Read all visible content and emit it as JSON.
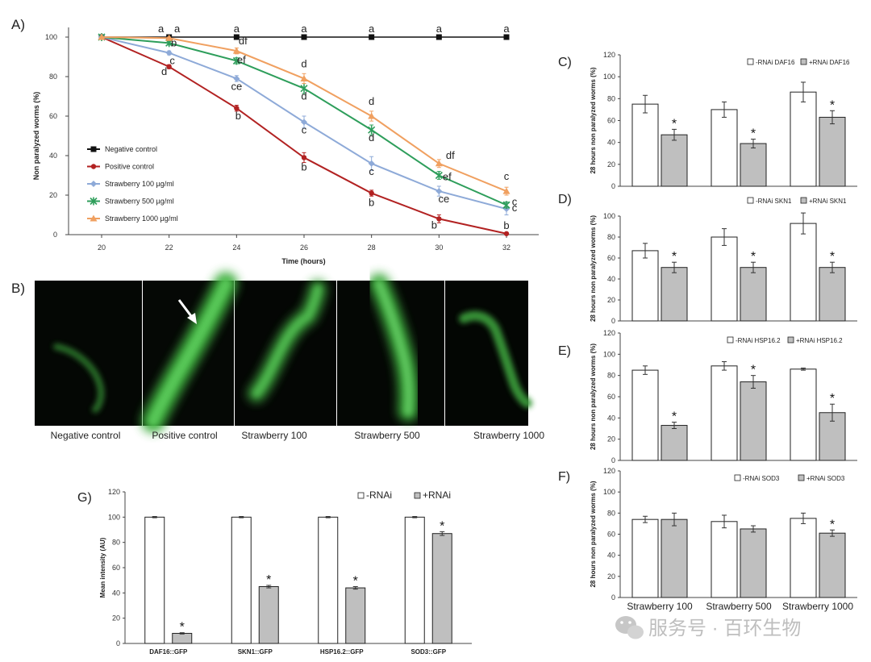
{
  "panel_letters": {
    "A": "A)",
    "B": "B)",
    "C": "C)",
    "D": "D)",
    "E": "E)",
    "F": "F)",
    "G": "G)"
  },
  "watermark": {
    "text": "服务号 · 百环生物",
    "icon": "wechat-icon"
  },
  "colors": {
    "negative": "#111111",
    "positive": "#b22222",
    "s100": "#8eaad8",
    "s500": "#2e9e5b",
    "s1000": "#f0a060",
    "bar_white": "#ffffff",
    "bar_gray": "#bfbfbf",
    "stroke": "#222222"
  },
  "panel_b": {
    "captions": [
      "Negative control",
      "Positive control",
      "Strawberry 100",
      "Strawberry 500",
      "Strawberry 1000"
    ],
    "arrow_icon": "arrow-icon"
  },
  "chart_data": [
    {
      "panel": "A",
      "type": "line",
      "xlabel": "Time (hours)",
      "ylabel": "Non paralyzed worms (%)",
      "x": [
        20,
        22,
        24,
        26,
        28,
        30,
        32
      ],
      "xlim": [
        20,
        32
      ],
      "ylim": [
        0,
        100
      ],
      "yticks": [
        0,
        20,
        40,
        60,
        80,
        100
      ],
      "legend_position": "center-left",
      "series": [
        {
          "name": "Negative control",
          "key": "negative",
          "marker": "square",
          "values": [
            100,
            100,
            100,
            100,
            100,
            100,
            100
          ],
          "labels": [
            "",
            "a",
            "a",
            "a",
            "a",
            "a",
            "a"
          ]
        },
        {
          "name": "Positive control",
          "key": "positive",
          "marker": "circle",
          "values": [
            100,
            85,
            64,
            39,
            21,
            8,
            0.5
          ],
          "errors": [
            0,
            1,
            1.5,
            2.5,
            1.5,
            2,
            0.5
          ],
          "labels": [
            "",
            "d",
            "b",
            "b",
            "b",
            "b",
            "b"
          ]
        },
        {
          "name": "Strawberry 100 µg/ml",
          "key": "s100",
          "marker": "diamond",
          "values": [
            100,
            92,
            79,
            57,
            36,
            22,
            13
          ],
          "errors": [
            0,
            1,
            1.5,
            3,
            3.5,
            2.5,
            3
          ],
          "labels": [
            "",
            "c",
            "ce",
            "c",
            "c",
            "ce",
            "c"
          ]
        },
        {
          "name": "Strawberry 500 µg/ml",
          "key": "s500",
          "marker": "star",
          "values": [
            100,
            97,
            88,
            74,
            53,
            30,
            15
          ],
          "errors": [
            0,
            1,
            1.5,
            2.5,
            2.5,
            2,
            1.5
          ],
          "labels": [
            "",
            "b",
            "ef",
            "d",
            "d",
            "ef",
            "c"
          ]
        },
        {
          "name": "Strawberry 1000 µg/ml",
          "key": "s1000",
          "marker": "triangle",
          "values": [
            100,
            99.5,
            93,
            79,
            60,
            36,
            22
          ],
          "errors": [
            0,
            0.5,
            1.5,
            2.5,
            2.5,
            2,
            2
          ],
          "labels": [
            "",
            "a",
            "df",
            "d",
            "d",
            "df",
            "c"
          ]
        }
      ]
    },
    {
      "panel": "C",
      "type": "bar",
      "ylabel": "28 hours non paralyzed worms (%)",
      "ylim": [
        0,
        120
      ],
      "yticks": [
        0,
        20,
        40,
        60,
        80,
        100,
        120
      ],
      "categories": [
        "Strawberry 100",
        "Strawberry 500",
        "Strawberry 1000"
      ],
      "show_categories": false,
      "series": [
        {
          "name": "-RNAi DAF16",
          "key": "bar_white",
          "values": [
            75,
            70,
            86
          ],
          "errors": [
            8,
            7,
            9
          ],
          "stars": [
            false,
            false,
            false
          ]
        },
        {
          "name": "+RNAi DAF16",
          "key": "bar_gray",
          "values": [
            47,
            39,
            63
          ],
          "errors": [
            5,
            4,
            6
          ],
          "stars": [
            true,
            true,
            true
          ]
        }
      ]
    },
    {
      "panel": "D",
      "type": "bar",
      "ylabel": "28 hours non paralyzed worms (%)",
      "ylim": [
        0,
        100
      ],
      "yticks": [
        0,
        20,
        40,
        60,
        80,
        100
      ],
      "categories": [
        "Strawberry 100",
        "Strawberry 500",
        "Strawberry 1000"
      ],
      "show_categories": false,
      "series": [
        {
          "name": "-RNAi SKN1",
          "key": "bar_white",
          "values": [
            67,
            80,
            93
          ],
          "errors": [
            7,
            8,
            10
          ],
          "stars": [
            false,
            false,
            false
          ]
        },
        {
          "name": "+RNAi SKN1",
          "key": "bar_gray",
          "values": [
            51,
            51,
            51
          ],
          "errors": [
            5,
            5,
            5
          ],
          "stars": [
            true,
            true,
            true
          ]
        }
      ]
    },
    {
      "panel": "E",
      "type": "bar",
      "ylabel": "28 hours non paralyzed worms (%)",
      "ylim": [
        0,
        120
      ],
      "yticks": [
        0,
        20,
        40,
        60,
        80,
        100,
        120
      ],
      "categories": [
        "Strawberry 100",
        "Strawberry 500",
        "Strawberry 1000"
      ],
      "show_categories": false,
      "series": [
        {
          "name": "-RNAi HSP16.2",
          "key": "bar_white",
          "values": [
            85,
            89,
            86
          ],
          "errors": [
            4,
            4,
            1
          ],
          "stars": [
            false,
            false,
            false
          ]
        },
        {
          "name": "+RNAi HSP16.2",
          "key": "bar_gray",
          "values": [
            33,
            74,
            45
          ],
          "errors": [
            3,
            6,
            8
          ],
          "stars": [
            true,
            true,
            true
          ]
        }
      ]
    },
    {
      "panel": "F",
      "type": "bar",
      "ylabel": "28 hours non paralyzed worms (%)",
      "ylim": [
        0,
        120
      ],
      "yticks": [
        0,
        20,
        40,
        60,
        80,
        100,
        120
      ],
      "categories": [
        "Strawberry 100",
        "Strawberry 500",
        "Strawberry 1000"
      ],
      "show_categories": true,
      "series": [
        {
          "name": "-RNAi SOD3",
          "key": "bar_white",
          "values": [
            74,
            72,
            75
          ],
          "errors": [
            3,
            6,
            5
          ],
          "stars": [
            false,
            false,
            false
          ]
        },
        {
          "name": "+RNAi SOD3",
          "key": "bar_gray",
          "values": [
            74,
            65,
            61
          ],
          "errors": [
            6,
            3,
            3
          ],
          "stars": [
            false,
            false,
            true
          ]
        }
      ]
    },
    {
      "panel": "G",
      "type": "bar",
      "ylabel": "Mean intensity (AU)",
      "ylim": [
        0,
        120
      ],
      "yticks": [
        0,
        20,
        40,
        60,
        80,
        100,
        120
      ],
      "categories": [
        "DAF16::GFP",
        "SKN1::GFP",
        "HSP16.2::GFP",
        "SOD3::GFP"
      ],
      "show_categories": true,
      "series": [
        {
          "name": "-RNAi",
          "key": "bar_white",
          "values": [
            100,
            100,
            100,
            100
          ],
          "errors": [
            0.5,
            0.5,
            0.5,
            0.5
          ],
          "stars": [
            false,
            false,
            false,
            false
          ]
        },
        {
          "name": "+RNAi",
          "key": "bar_gray",
          "values": [
            8,
            45,
            44,
            87
          ],
          "errors": [
            0.5,
            1,
            1,
            1.5
          ],
          "stars": [
            true,
            true,
            true,
            true
          ]
        }
      ]
    }
  ]
}
